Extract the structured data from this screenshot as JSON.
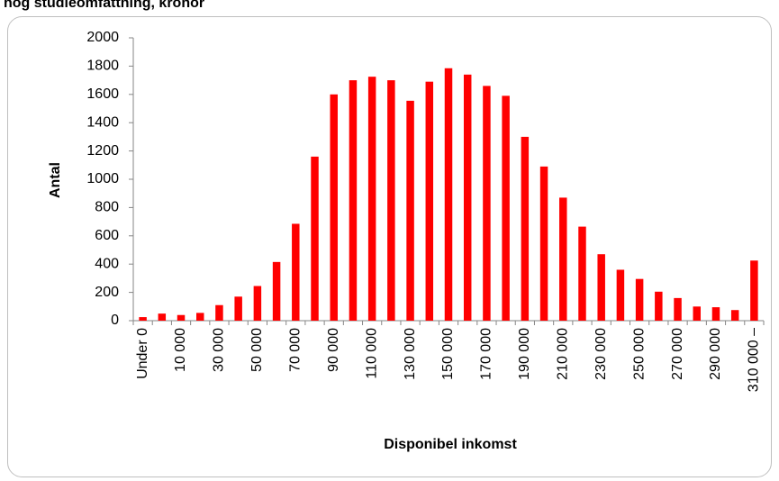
{
  "chart_data": {
    "type": "bar",
    "title": "hög studieomfattning, kronor",
    "x_label": "Disponibel inkomst",
    "y_label": "Antal",
    "categories": [
      "Under 0",
      null,
      "10 000",
      null,
      "30 000",
      null,
      "50 000",
      null,
      "70 000",
      null,
      "90 000",
      null,
      "110 000",
      null,
      "130 000",
      null,
      "150 000",
      null,
      "170 000",
      null,
      "190 000",
      null,
      "210 000",
      null,
      "230 000",
      null,
      "250 000",
      null,
      "270 000",
      null,
      "290 000",
      null,
      "310 000 –"
    ],
    "values": [
      25,
      50,
      40,
      55,
      110,
      170,
      245,
      415,
      685,
      1160,
      1600,
      1700,
      1725,
      1700,
      1555,
      1690,
      1785,
      1740,
      1660,
      1590,
      1300,
      1090,
      870,
      665,
      470,
      360,
      295,
      205,
      160,
      100,
      95,
      75,
      425
    ],
    "color": "#ff0000",
    "ylim": [
      0,
      2000
    ],
    "yticks": [
      0,
      200,
      400,
      600,
      800,
      1000,
      1200,
      1400,
      1600,
      1800,
      2000
    ],
    "grid": false
  }
}
